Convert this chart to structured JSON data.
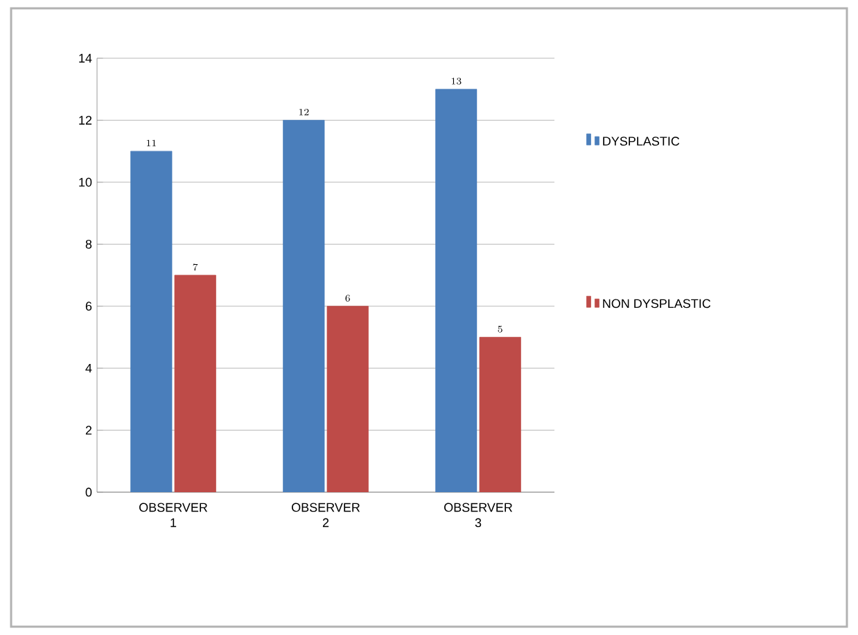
{
  "chart_data": {
    "type": "bar",
    "categories": [
      "OBSERVER 1",
      "OBSERVER 2",
      "OBSERVER 3"
    ],
    "series": [
      {
        "name": "DYSPLASTIC",
        "color": "#4a7ebb",
        "values": [
          11,
          12,
          13
        ]
      },
      {
        "name": "NON DYSPLASTIC",
        "color": "#be4b48",
        "values": [
          7,
          6,
          5
        ]
      }
    ],
    "ylim": [
      0,
      14
    ],
    "yticks": [
      0,
      2,
      4,
      6,
      8,
      10,
      12,
      14
    ],
    "grid": "y",
    "legend": "right",
    "data_labels": true
  }
}
